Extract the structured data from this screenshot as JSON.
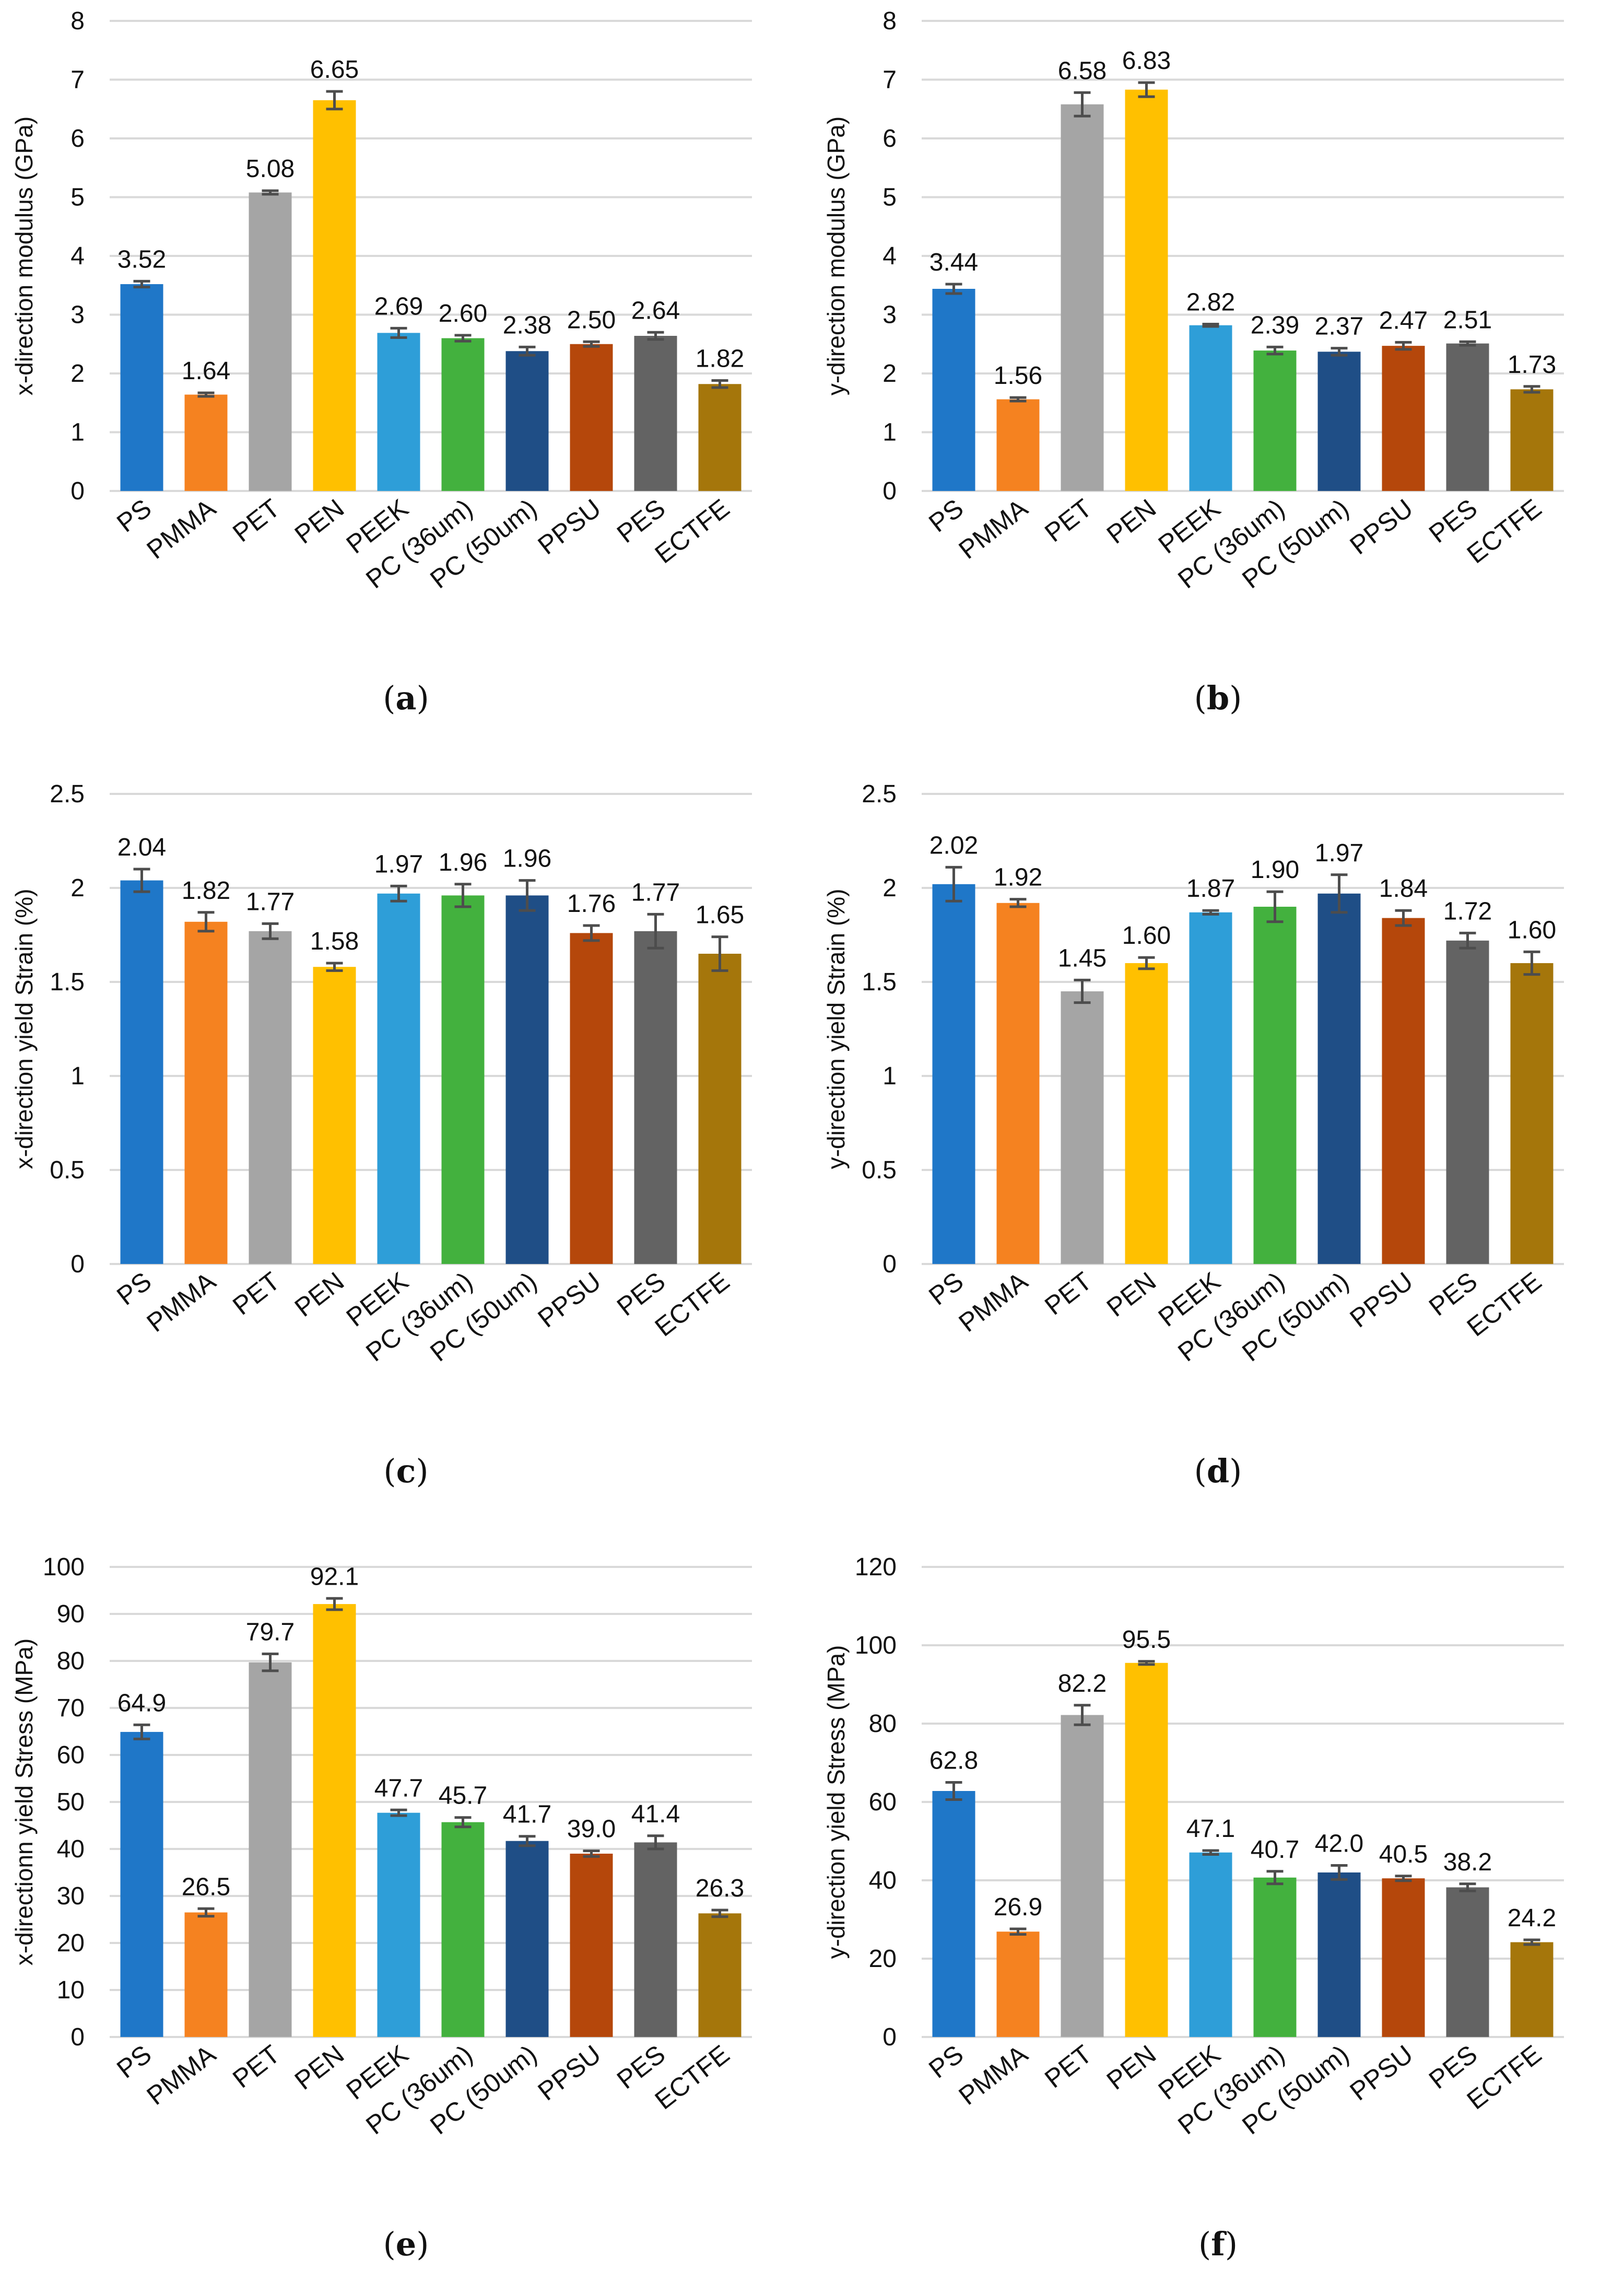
{
  "categories": [
    "PS",
    "PMMA",
    "PET",
    "PEN",
    "PEEK",
    "PC (36um)",
    "PC (50um)",
    "PPSU",
    "PES",
    "ECTFE"
  ],
  "colors": [
    "#1f77c8",
    "#f58220",
    "#a5a5a5",
    "#ffc000",
    "#2e9ed8",
    "#43b13e",
    "#1f4e86",
    "#b5470b",
    "#636363",
    "#a5760b"
  ],
  "error_bar_color": "#4d4d4d",
  "chart_data": [
    {
      "id": "a",
      "caption_letter": "a",
      "type": "bar",
      "ylabel": "x-direction modulus (GPa)",
      "ylim": [
        0,
        8
      ],
      "ticks": [
        0,
        1,
        2,
        3,
        4,
        5,
        6,
        7,
        8
      ],
      "tick_labels": [
        "0",
        "1",
        "2",
        "3",
        "4",
        "5",
        "6",
        "7",
        "8"
      ],
      "values": [
        3.52,
        1.64,
        5.08,
        6.65,
        2.69,
        2.6,
        2.38,
        2.5,
        2.64,
        1.82
      ],
      "value_labels": [
        "3.52",
        "1.64",
        "5.08",
        "6.65",
        "2.69",
        "2.60",
        "2.38",
        "2.50",
        "2.64",
        "1.82"
      ],
      "errors": [
        0.05,
        0.03,
        0.03,
        0.15,
        0.08,
        0.05,
        0.07,
        0.04,
        0.06,
        0.06
      ]
    },
    {
      "id": "b",
      "caption_letter": "b",
      "type": "bar",
      "ylabel": "y-direction modulus (GPa)",
      "ylim": [
        0,
        8
      ],
      "ticks": [
        0,
        1,
        2,
        3,
        4,
        5,
        6,
        7,
        8
      ],
      "tick_labels": [
        "0",
        "1",
        "2",
        "3",
        "4",
        "5",
        "6",
        "7",
        "8"
      ],
      "values": [
        3.44,
        1.56,
        6.58,
        6.83,
        2.82,
        2.39,
        2.37,
        2.47,
        2.51,
        1.73
      ],
      "value_labels": [
        "3.44",
        "1.56",
        "6.58",
        "6.83",
        "2.82",
        "2.39",
        "2.37",
        "2.47",
        "2.51",
        "1.73"
      ],
      "errors": [
        0.08,
        0.03,
        0.2,
        0.12,
        0.02,
        0.06,
        0.06,
        0.06,
        0.03,
        0.05
      ]
    },
    {
      "id": "c",
      "caption_letter": "c",
      "type": "bar",
      "ylabel": "x-direction yield Strain (%)",
      "ylim": [
        0,
        2.5
      ],
      "ticks": [
        0,
        0.5,
        1,
        1.5,
        2,
        2.5
      ],
      "tick_labels": [
        "0",
        "0.5",
        "1",
        "1.5",
        "2",
        "2.5"
      ],
      "values": [
        2.04,
        1.82,
        1.77,
        1.58,
        1.97,
        1.96,
        1.96,
        1.76,
        1.77,
        1.65
      ],
      "value_labels": [
        "2.04",
        "1.82",
        "1.77",
        "1.58",
        "1.97",
        "1.96",
        "1.96",
        "1.76",
        "1.77",
        "1.65"
      ],
      "errors": [
        0.06,
        0.05,
        0.04,
        0.02,
        0.04,
        0.06,
        0.08,
        0.04,
        0.09,
        0.09
      ]
    },
    {
      "id": "d",
      "caption_letter": "d",
      "type": "bar",
      "ylabel": "y-direction yield Strain (%)",
      "ylim": [
        0,
        2.5
      ],
      "ticks": [
        0,
        0.5,
        1,
        1.5,
        2,
        2.5
      ],
      "tick_labels": [
        "0",
        "0.5",
        "1",
        "1.5",
        "2",
        "2.5"
      ],
      "values": [
        2.02,
        1.92,
        1.45,
        1.6,
        1.87,
        1.9,
        1.97,
        1.84,
        1.72,
        1.6
      ],
      "value_labels": [
        "2.02",
        "1.92",
        "1.45",
        "1.60",
        "1.87",
        "1.90",
        "1.97",
        "1.84",
        "1.72",
        "1.60"
      ],
      "errors": [
        0.09,
        0.02,
        0.06,
        0.03,
        0.01,
        0.08,
        0.1,
        0.04,
        0.04,
        0.06
      ]
    },
    {
      "id": "e",
      "caption_letter": "e",
      "type": "bar",
      "ylabel": "x-directionn yield Stress (MPa)",
      "ylim": [
        0,
        100
      ],
      "ticks": [
        0,
        10,
        20,
        30,
        40,
        50,
        60,
        70,
        80,
        90,
        100
      ],
      "tick_labels": [
        "0",
        "10",
        "20",
        "30",
        "40",
        "50",
        "60",
        "70",
        "80",
        "90",
        "100"
      ],
      "values": [
        64.9,
        26.5,
        79.7,
        92.1,
        47.7,
        45.7,
        41.7,
        39.0,
        41.4,
        26.3
      ],
      "value_labels": [
        "64.9",
        "26.5",
        "79.7",
        "92.1",
        "47.7",
        "45.7",
        "41.7",
        "39.0",
        "41.4",
        "26.3"
      ],
      "errors": [
        1.5,
        0.8,
        1.8,
        1.2,
        0.6,
        1.0,
        1.0,
        0.6,
        1.4,
        0.7
      ]
    },
    {
      "id": "f",
      "caption_letter": "f",
      "type": "bar",
      "ylabel": "y-direction yield Stress (MPa)",
      "ylim": [
        0,
        120
      ],
      "ticks": [
        0,
        20,
        40,
        60,
        80,
        100,
        120
      ],
      "tick_labels": [
        "0",
        "20",
        "40",
        "60",
        "80",
        "100",
        "120"
      ],
      "values": [
        62.8,
        26.9,
        82.2,
        95.5,
        47.1,
        40.7,
        42.0,
        40.5,
        38.2,
        24.2
      ],
      "value_labels": [
        "62.8",
        "26.9",
        "82.2",
        "95.5",
        "47.1",
        "40.7",
        "42.0",
        "40.5",
        "38.2",
        "24.2"
      ],
      "errors": [
        2.2,
        0.7,
        2.5,
        0.4,
        0.5,
        1.6,
        1.8,
        0.6,
        0.9,
        0.6
      ]
    }
  ]
}
